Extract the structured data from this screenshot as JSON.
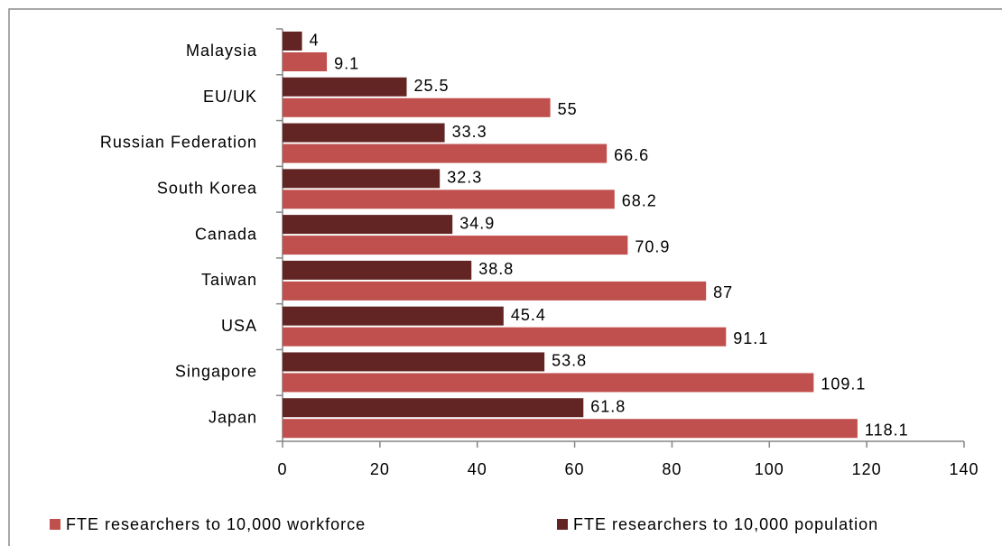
{
  "chart_data": {
    "type": "hbar",
    "categories": [
      "Malaysia",
      "EU/UK",
      "Russian Federation",
      "South Korea",
      "Canada",
      "Taiwan",
      "USA",
      "Singapore",
      "Japan"
    ],
    "series": [
      {
        "name": "FTE researchers to 10,000 population",
        "color": "#632523",
        "values": [
          4,
          25.5,
          33.3,
          32.3,
          34.9,
          38.8,
          45.4,
          53.8,
          61.8
        ]
      },
      {
        "name": "FTE researchers to 10,000 workforce",
        "color": "#c0504d",
        "values": [
          9.1,
          55,
          66.6,
          68.2,
          70.9,
          87,
          91.1,
          109.1,
          118.1
        ]
      }
    ],
    "xlim": [
      0,
      140
    ],
    "xticks": [
      0,
      20,
      40,
      60,
      80,
      100,
      120,
      140
    ],
    "grid": false,
    "legend": "bottom"
  }
}
